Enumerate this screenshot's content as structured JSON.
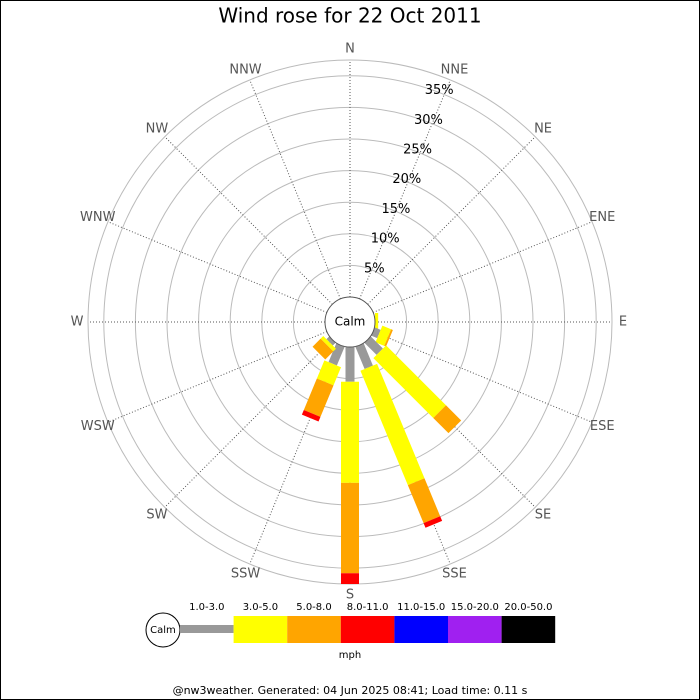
{
  "chart_data": {
    "type": "wind-rose",
    "title": "Wind rose for 22 Oct 2011",
    "categories": [
      "N",
      "NNE",
      "NE",
      "ENE",
      "E",
      "ESE",
      "SE",
      "SSE",
      "S",
      "SSW",
      "SW",
      "WSW",
      "W",
      "WNW",
      "NW",
      "NNW"
    ],
    "calm_label": "Calm",
    "rlim": [
      0,
      37.5
    ],
    "rticks": [
      {
        "value": 5,
        "label": "5%"
      },
      {
        "value": 10,
        "label": "10%"
      },
      {
        "value": 15,
        "label": "15%"
      },
      {
        "value": 20,
        "label": "20%"
      },
      {
        "value": 25,
        "label": "25%"
      },
      {
        "value": 30,
        "label": "30%"
      },
      {
        "value": 35,
        "label": "35%"
      }
    ],
    "legend_unit": "mph",
    "series": [
      {
        "name": "1.0-3.0",
        "color": "#999999",
        "values": [
          0,
          0,
          0,
          0,
          0,
          1,
          2.7,
          3.8,
          5.5,
          3.2,
          0.6,
          0,
          0,
          0,
          0,
          0
        ]
      },
      {
        "name": "3.0-5.0",
        "color": "#ffff00",
        "values": [
          0,
          0,
          0,
          0,
          0.5,
          1.5,
          13.4,
          19.6,
          16,
          3.1,
          0.6,
          0,
          0,
          0,
          0,
          0
        ]
      },
      {
        "name": "5.0-8.0",
        "color": "#ffa500",
        "values": [
          0,
          0,
          0,
          0,
          0,
          0.3,
          3.4,
          6.5,
          14.3,
          5.4,
          1.8,
          0,
          0,
          0,
          0,
          0
        ]
      },
      {
        "name": "8.0-11.0",
        "color": "#ff0000",
        "values": [
          0,
          0,
          0,
          0,
          0,
          0,
          0,
          0.8,
          1.7,
          0.8,
          0,
          0,
          0,
          0,
          0,
          0
        ]
      },
      {
        "name": "11.0-15.0",
        "color": "#0000ff",
        "values": [
          0,
          0,
          0,
          0,
          0,
          0,
          0,
          0,
          0,
          0,
          0,
          0,
          0,
          0,
          0,
          0
        ]
      },
      {
        "name": "15.0-20.0",
        "color": "#a020f0",
        "values": [
          0,
          0,
          0,
          0,
          0,
          0,
          0,
          0,
          0,
          0,
          0,
          0,
          0,
          0,
          0,
          0
        ]
      },
      {
        "name": "20.0-50.0",
        "color": "#000000",
        "values": [
          0,
          0,
          0,
          0,
          0,
          0,
          0,
          0,
          0,
          0,
          0,
          0,
          0,
          0,
          0,
          0
        ]
      }
    ],
    "footer": "@nw3weather. Generated: 04 Jun 2025 08:41; Load time: 0.11 s"
  }
}
